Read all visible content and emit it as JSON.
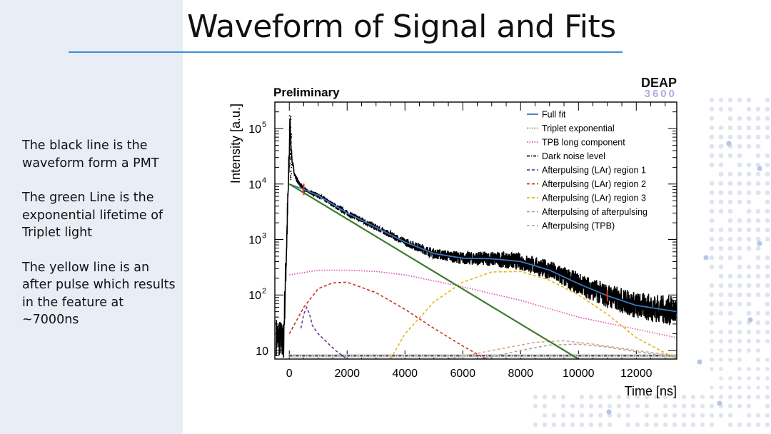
{
  "slide": {
    "title": "Waveform of Signal and Fits",
    "notes": [
      "The black line is the waveform form a PMT",
      "The green Line is the exponential lifetime of Triplet light",
      "The yellow line is an after pulse which results in the feature at ~7000ns"
    ]
  },
  "colors": {
    "accent_rule": "#3d8fd8",
    "left_panel": "#e9edf6",
    "decor_dots": "#dfe4ee",
    "logo_deap": "#111111",
    "logo_3600": "#b9a6e0"
  },
  "chart_data": {
    "type": "line",
    "header_left": "Preliminary",
    "logo_text": "DEAP",
    "logo_subtext": "3600",
    "xlabel": "Time [ns]",
    "ylabel": "Intensity [a.u.]",
    "xlim": [
      -500,
      13400
    ],
    "ylim": [
      7,
      300000
    ],
    "yscale": "log",
    "xticks": [
      0,
      2000,
      4000,
      6000,
      8000,
      10000,
      12000
    ],
    "xtick_labels": [
      "0",
      "2000",
      "4000",
      "6000",
      "8000",
      "10000",
      "12000"
    ],
    "yticks": [
      10,
      100,
      1000,
      10000,
      100000
    ],
    "ytick_labels": [
      {
        "base": "10",
        "exp": ""
      },
      {
        "base": "10",
        "exp": "2"
      },
      {
        "base": "10",
        "exp": "3"
      },
      {
        "base": "10",
        "exp": "4"
      },
      {
        "base": "10",
        "exp": "5"
      }
    ],
    "legend_position": "top-right",
    "fit_range_markers": [
      500,
      11000
    ],
    "series": [
      {
        "name": "Full fit",
        "color": "#3b76c4",
        "style": "solid",
        "x": [
          0,
          500,
          1000,
          2000,
          3000,
          4000,
          5000,
          6000,
          7000,
          8000,
          9000,
          10000,
          11000,
          12000,
          13400
        ],
        "y": [
          10000,
          8000,
          6200,
          3000,
          1650,
          900,
          560,
          460,
          450,
          400,
          280,
          160,
          97,
          65,
          50
        ]
      },
      {
        "name": "Triplet exponential",
        "color": "#7a8c18",
        "style": "dotted",
        "x": [
          0,
          10000
        ],
        "y": [
          10000,
          7
        ]
      },
      {
        "name": "TPB long component",
        "color": "#e44bb0",
        "style": "dotted",
        "x": [
          0,
          1000,
          2000,
          3000,
          4000,
          6000,
          8000,
          10000,
          13400
        ],
        "y": [
          230,
          280,
          280,
          265,
          230,
          140,
          80,
          40,
          17
        ]
      },
      {
        "name": "Dark noise level",
        "color": "#111111",
        "style": "dashdot",
        "x": [
          0,
          13400
        ],
        "y": [
          8,
          8
        ]
      },
      {
        "name": "Afterpulsing (LAr) region 1",
        "color": "#6c3a9a",
        "style": "dashed",
        "x": [
          400,
          500,
          600,
          700,
          800,
          1000,
          1300,
          1600,
          2000
        ],
        "y": [
          25,
          45,
          60,
          45,
          28,
          20,
          14,
          10,
          7
        ]
      },
      {
        "name": "Afterpulsing (LAr) region 2",
        "color": "#c8321c",
        "style": "dashed",
        "x": [
          0,
          500,
          1000,
          1500,
          2000,
          3000,
          4000,
          5000,
          6000,
          6800
        ],
        "y": [
          20,
          60,
          130,
          165,
          170,
          110,
          55,
          25,
          12,
          7
        ]
      },
      {
        "name": "Afterpulsing (LAr) region 3",
        "color": "#e2b712",
        "style": "dashed",
        "x": [
          3500,
          4000,
          5000,
          6000,
          7000,
          8000,
          9000,
          10000,
          11000,
          12000,
          13400
        ],
        "y": [
          7,
          20,
          75,
          170,
          260,
          265,
          185,
          100,
          45,
          17,
          7
        ]
      },
      {
        "name": "Afterpulsing of afterpulsing",
        "color": "#a7a7a7",
        "style": "dashed",
        "x": [
          6600,
          8000,
          9000,
          10000,
          11000,
          12000,
          13400
        ],
        "y": [
          7,
          10,
          12.5,
          13,
          11.5,
          9.5,
          7.5
        ]
      },
      {
        "name": "Afterpulsing (TPB)",
        "color": "#d3a98a",
        "style": "dashed",
        "x": [
          5500,
          7000,
          8500,
          9500,
          10500,
          12000,
          13400
        ],
        "y": [
          7,
          10,
          14,
          15,
          13,
          10,
          8
        ]
      },
      {
        "name": "",
        "color": "#3c7a2a",
        "style": "solid",
        "x": [
          0,
          10000
        ],
        "y": [
          10000,
          7
        ]
      }
    ],
    "waveform_samples": {
      "color": "#000000",
      "x": [
        -400,
        -200,
        0,
        20,
        50,
        100,
        200,
        300,
        500,
        1000,
        1500,
        2000,
        3000,
        4000,
        5000,
        6000,
        7000,
        8000,
        9000,
        10000,
        11000,
        12000,
        13400
      ],
      "y": [
        18,
        14,
        30000,
        180000,
        60000,
        25000,
        14000,
        11000,
        8000,
        6200,
        4300,
        3000,
        1650,
        900,
        560,
        460,
        450,
        400,
        280,
        160,
        97,
        65,
        50
      ]
    }
  }
}
